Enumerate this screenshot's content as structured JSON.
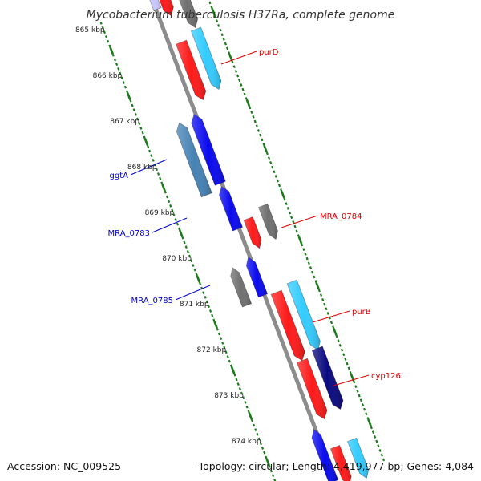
{
  "title": "Mycobacterium tuberculosis H37Ra, complete genome",
  "footer": {
    "accession": "Accession: NC_009525",
    "summary": "Topology: circular; Length: 4,419,977 bp; Genes: 4,084"
  },
  "colors": {
    "backbone": "#8c8c8c",
    "tick": "#1a7a1a",
    "forward_red": "#ff1a1a",
    "forward_cyan": "#33ccff",
    "forward_gray": "#707070",
    "reverse_blue": "#0a0aee",
    "reverse_steel": "#4682b4",
    "reverse_gray": "#707070",
    "reverse_navy": "#0a0a80",
    "label_forward": "#dd0000",
    "label_reverse": "#0000cc"
  },
  "tick_labels": [
    "865 kbp",
    "866 kbp",
    "867 kbp",
    "868 kbp",
    "869 kbp",
    "870 kbp",
    "871 kbp",
    "872 kbp",
    "873 kbp",
    "874 kbp"
  ],
  "labels": [
    {
      "text": "purD",
      "strand": "forward"
    },
    {
      "text": "ggtA",
      "strand": "reverse"
    },
    {
      "text": "MRA_0784",
      "strand": "forward"
    },
    {
      "text": "MRA_0783",
      "strand": "reverse"
    },
    {
      "text": "MRA_0785",
      "strand": "reverse"
    },
    {
      "text": "purB",
      "strand": "forward"
    },
    {
      "text": "cyp126",
      "strand": "forward"
    }
  ]
}
